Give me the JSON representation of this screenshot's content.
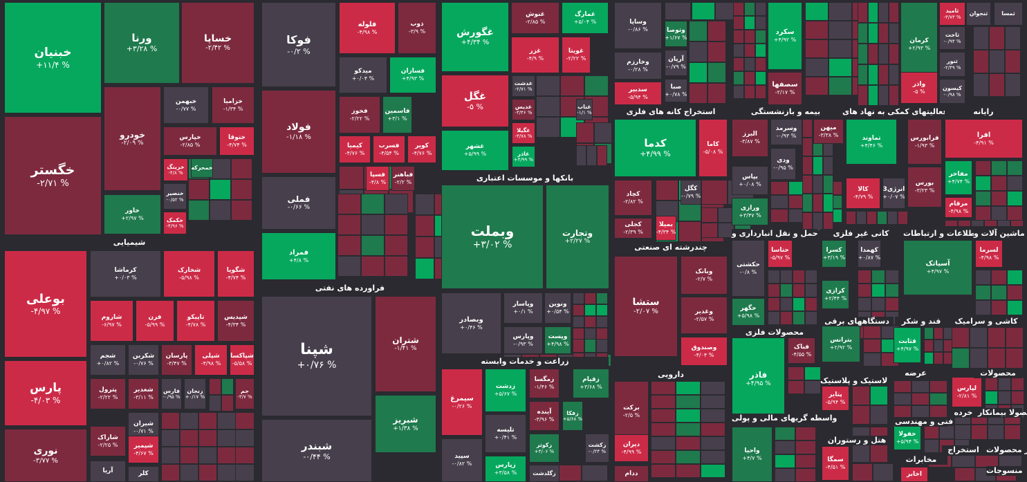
{
  "chart_data": {
    "type": "treemap",
    "colors": {
      "strong_up": "#06a85e",
      "up": "#1f7a4d",
      "flat": "#47404c",
      "down": "#7d2a3f",
      "strong_down": "#cc2b47",
      "background": "#2a2a30"
    },
    "sectors": [
      "شیمیایی",
      "فراورده های نفتی",
      "بانکها و موسسات اعتباری",
      "زراعت و خدمات وابسته",
      "استخراج کانه های فلزی",
      "بیمه و بازنشستگی",
      "فعالیتهای کمکی به نهاد های",
      "رایانه",
      "چندرشته ای صنعتی",
      "حمل و نقل انبارداری و",
      "کانی غیر فلزی",
      "اطلاعات و ارتباطات",
      "ماشین آلات و",
      "محصولات فلزی",
      "دستگاههای برقی",
      "قند و شکر",
      "کاشی و سرامیک",
      "دارویی",
      "لاستیک و پلاستیک",
      "واسطه گریهای مالی و پولی",
      "هتل و رستوران",
      "مخابرات",
      "عرضه",
      "محصولات",
      "فنی و مهندسی",
      "خرده",
      "محصولا بیمانکار",
      "سایر محصولات",
      "استخراج",
      "منسوجات"
    ],
    "stocks": [
      {
        "name": "خبنیان",
        "change": "+۱۱/۴ %",
        "c": "strong_up"
      },
      {
        "name": "ورنا",
        "change": "+۳/۲۸ %",
        "c": "up"
      },
      {
        "name": "خساپا",
        "change": "-۲/۴۲ %",
        "c": "down"
      },
      {
        "name": "خگستر",
        "change": "-۲/۷۱ %",
        "c": "down"
      },
      {
        "name": "خبهمن",
        "change": "-۰/۷۷ %",
        "c": "flat"
      },
      {
        "name": "خزامیا",
        "change": "-۱/۳۴ %",
        "c": "down"
      },
      {
        "name": "خودرو",
        "change": "-۲/۰۹ %",
        "c": "down"
      },
      {
        "name": "خپارس",
        "change": "-۲/۸۵ %",
        "c": "down"
      },
      {
        "name": "ختوقا",
        "change": "-۴/۷۴ %",
        "c": "strong_down"
      },
      {
        "name": "خرینگ",
        "change": "-۴/۸ %",
        "c": "strong_down"
      },
      {
        "name": "خمحرکه",
        "change": "",
        "c": "up"
      },
      {
        "name": "خاور",
        "change": "+۲/۹۷ %",
        "c": "up"
      },
      {
        "name": "خکمک",
        "change": "-۴/۹۶ %",
        "c": "strong_down"
      },
      {
        "name": "خنصیر",
        "change": "-۰/۵۲ %",
        "c": "flat"
      },
      {
        "name": "فوکا",
        "change": "-۰/۲ %",
        "c": "flat"
      },
      {
        "name": "فولاد",
        "change": "-۱/۱۸ %",
        "c": "down"
      },
      {
        "name": "فملی",
        "change": "-۰/۶۶ %",
        "c": "flat"
      },
      {
        "name": "فمراد",
        "change": "+۴/۸ %",
        "c": "strong_up"
      },
      {
        "name": "فلوله",
        "change": "-۴/۹۸ %",
        "c": "strong_down"
      },
      {
        "name": "ذوب",
        "change": "-۳/۹ %",
        "c": "down"
      },
      {
        "name": "میدکو",
        "change": "+۰/۰۴ %",
        "c": "flat"
      },
      {
        "name": "فسازان",
        "change": "+۴/۹۳ %",
        "c": "strong_up"
      },
      {
        "name": "فخوز",
        "change": "-۲/۲۲ %",
        "c": "down"
      },
      {
        "name": "فاسمین",
        "change": "+۳/۱ %",
        "c": "up"
      },
      {
        "name": "کیمیا",
        "change": "-۴/۷۶ %",
        "c": "strong_down"
      },
      {
        "name": "فسرب",
        "change": "-۴/۵۴ %",
        "c": "strong_down"
      },
      {
        "name": "کویر",
        "change": "-۴/۷۶ %",
        "c": "strong_down"
      },
      {
        "name": "فسپا",
        "change": "-۴/۸ %",
        "c": "strong_down"
      },
      {
        "name": "فباهنر",
        "change": "-۲/۲ %",
        "c": "down"
      },
      {
        "name": "غگورش",
        "change": "+۴/۳۴ %",
        "c": "strong_up"
      },
      {
        "name": "غنوش",
        "change": "-۲/۸۵ %",
        "c": "down"
      },
      {
        "name": "غمارگ",
        "change": "+۵/۰۴ %",
        "c": "strong_up"
      },
      {
        "name": "غزر",
        "change": "-۴/۹ %",
        "c": "strong_down"
      },
      {
        "name": "غویتا",
        "change": "-۲/۲۲ %",
        "c": "strong_down"
      },
      {
        "name": "غگل",
        "change": "-۵ %",
        "c": "strong_down"
      },
      {
        "name": "غدشت",
        "change": "-۲/۷۱ %",
        "c": "flat"
      },
      {
        "name": "غدیس",
        "change": "-۳/۴۶ %",
        "c": "down"
      },
      {
        "name": "غشهر",
        "change": "+۵/۹۹ %",
        "c": "strong_up"
      },
      {
        "name": "غگیلا",
        "change": "-۳/۷۸ %",
        "c": "strong_down"
      },
      {
        "name": "غناب",
        "change": "-۱/۱ %",
        "c": "flat"
      },
      {
        "name": "غاذر",
        "change": "+۴/۹۹ %",
        "c": "strong_up"
      },
      {
        "name": "وبملت",
        "change": "+۳/۰۲ %",
        "c": "up"
      },
      {
        "name": "وتجارت",
        "change": "+۲/۲۷ %",
        "c": "up"
      },
      {
        "name": "شپنا",
        "change": "+۰/۷۶ %",
        "c": "flat"
      },
      {
        "name": "شتران",
        "change": "-۱/۴۱ %",
        "c": "down"
      },
      {
        "name": "شبریز",
        "change": "+۱/۳۸ %",
        "c": "up"
      },
      {
        "name": "شبندر",
        "change": "-۰/۴۴ %",
        "c": "flat"
      },
      {
        "name": "وبصادر",
        "change": "+۰/۴۶ %",
        "c": "flat"
      },
      {
        "name": "وپاسار",
        "change": "+۰/۱ %",
        "c": "flat"
      },
      {
        "name": "ونوین",
        "change": "+۰/۵۴ %",
        "c": "flat"
      },
      {
        "name": "وپارس",
        "change": "-۰/۹۳ %",
        "c": "flat"
      },
      {
        "name": "وپست",
        "change": "+۴/۹۸ %",
        "c": "up"
      },
      {
        "name": "بوعلی",
        "change": "-۴/۹۷ %",
        "c": "strong_down"
      },
      {
        "name": "کرماشا",
        "change": "+۰/۰۳ %",
        "c": "flat"
      },
      {
        "name": "شخارک",
        "change": "-۵/۹۸ %",
        "c": "strong_down"
      },
      {
        "name": "شگویا",
        "change": "-۴/۷۴ %",
        "c": "strong_down"
      },
      {
        "name": "پارس",
        "change": "-۴/۰۳ %",
        "c": "strong_down"
      },
      {
        "name": "شاروم",
        "change": "-۶/۹۷ %",
        "c": "strong_down"
      },
      {
        "name": "فرن",
        "change": "-۵/۹۹ %",
        "c": "strong_down"
      },
      {
        "name": "تاپیکو",
        "change": "-۴/۷۸ %",
        "c": "strong_down"
      },
      {
        "name": "شپدیس",
        "change": "-۴/۳۴ %",
        "c": "down"
      },
      {
        "name": "شجم",
        "change": "+۰/۸۲ %",
        "c": "flat"
      },
      {
        "name": "شکربن",
        "change": "-۰/۷۶ %",
        "c": "flat"
      },
      {
        "name": "پارسان",
        "change": "-۳/۴۷ %",
        "c": "down"
      },
      {
        "name": "شپلی",
        "change": "-۴/۹۸ %",
        "c": "strong_down"
      },
      {
        "name": "شپاکسا",
        "change": "-۵/۵۸ %",
        "c": "strong_down"
      },
      {
        "name": "پترول",
        "change": "-۲/۲۲ %",
        "c": "down"
      },
      {
        "name": "شغدیر",
        "change": "-۳/۱۱ %",
        "c": "down"
      },
      {
        "name": "فارس",
        "change": "-۰/۹۵ %",
        "c": "flat"
      },
      {
        "name": "زنجان",
        "change": "+۰/۱۷ %",
        "c": "flat"
      },
      {
        "name": "جم",
        "change": "-۳/۷ %",
        "c": "down"
      },
      {
        "name": "نوری",
        "change": "-۳/۷۷ %",
        "c": "down"
      },
      {
        "name": "شیران",
        "change": "-۰/۷۱ %",
        "c": "flat"
      },
      {
        "name": "شاراک",
        "change": "-۲/۲۵ %",
        "c": "down"
      },
      {
        "name": "شپمیر",
        "change": "-۴/۶۷ %",
        "c": "strong_down"
      },
      {
        "name": "آریا",
        "change": "",
        "c": "flat"
      },
      {
        "name": "کلر",
        "change": "",
        "c": "flat"
      },
      {
        "name": "سیمرغ",
        "change": "-۰/۲۶ %",
        "c": "strong_down"
      },
      {
        "name": "زدشت",
        "change": "+۵/۶۷ %",
        "c": "strong_up"
      },
      {
        "name": "زمگسا",
        "change": "-۱/۴۶ %",
        "c": "down"
      },
      {
        "name": "زقیام",
        "change": "+۳/۶۸ %",
        "c": "up"
      },
      {
        "name": "تلیسه",
        "change": "+۰/۴۱ %",
        "c": "flat"
      },
      {
        "name": "آینده",
        "change": "-۳/۹۶ %",
        "c": "down"
      },
      {
        "name": "زفکا",
        "change": "+۵/۶۸ %",
        "c": "up"
      },
      {
        "name": "زکوثر",
        "change": "+۳/۰۶ %",
        "c": "up"
      },
      {
        "name": "زکشت",
        "change": "-۰/۲۴ %",
        "c": "flat"
      },
      {
        "name": "سپید",
        "change": "-۰/۸۲ %",
        "c": "flat"
      },
      {
        "name": "زپارس",
        "change": "+۳/۵۸ %",
        "c": "strong_up"
      },
      {
        "name": "زگلدشت",
        "change": "",
        "c": "flat"
      },
      {
        "name": "وساپا",
        "change": "-۰/۸۶ %",
        "c": "flat"
      },
      {
        "name": "وتوصا",
        "change": "+۱/۶۷ %",
        "c": "up"
      },
      {
        "name": "وخارزم",
        "change": "-۰/۲۸ %",
        "c": "flat"
      },
      {
        "name": "آریان",
        "change": "-۰/۷۹ %",
        "c": "flat"
      },
      {
        "name": "صبا",
        "change": "+۰/۷۸ %",
        "c": "flat"
      },
      {
        "name": "سدبیر",
        "change": "-۵/۹۴ %",
        "c": "strong_down"
      },
      {
        "name": "کدما",
        "change": "+۴/۹۹ %",
        "c": "strong_up"
      },
      {
        "name": "کاما",
        "change": "-۵/۰۸ %",
        "c": "strong_down"
      },
      {
        "name": "کچاد",
        "change": "-۲/۸۲ %",
        "c": "down"
      },
      {
        "name": "کگل",
        "change": "-۰/۷۹ %",
        "c": "flat"
      },
      {
        "name": "کجلی",
        "change": "-۲/۳۹ %",
        "c": "down"
      },
      {
        "name": "بمیلا",
        "change": "-۴/۳۴ %",
        "c": "strong_down"
      },
      {
        "name": "ستشا",
        "change": "-۲/۰۷ %",
        "c": "down"
      },
      {
        "name": "وبانک",
        "change": "-۲/۷ %",
        "c": "down"
      },
      {
        "name": "وغدیر",
        "change": "-۲/۵۷ %",
        "c": "down"
      },
      {
        "name": "وصندوق",
        "change": "-۴/۰۴ %",
        "c": "strong_down"
      },
      {
        "name": "برکت",
        "change": "-۲/۵ %",
        "c": "down"
      },
      {
        "name": "دیران",
        "change": "-۴/۹۹ %",
        "c": "strong_down"
      },
      {
        "name": "ددام",
        "change": "",
        "c": "down"
      },
      {
        "name": "سکرد",
        "change": "+۴/۹۲ %",
        "c": "strong_up"
      },
      {
        "name": "سصفها",
        "change": "-۲/۱۷ %",
        "c": "down"
      },
      {
        "name": "کرمان",
        "change": "+۲/۹۳ %",
        "c": "up"
      },
      {
        "name": "واذر",
        "change": "-۵ %",
        "c": "strong_down"
      },
      {
        "name": "البرز",
        "change": "-۳/۸۷ %",
        "c": "down"
      },
      {
        "name": "وسرمد",
        "change": "-۰/۹۳ %",
        "c": "flat"
      },
      {
        "name": "میهن",
        "change": "-۳/۳۸ %",
        "c": "down"
      },
      {
        "name": "ودی",
        "change": "-۰/۹۵ %",
        "c": "flat"
      },
      {
        "name": "بپاس",
        "change": "+۰/۰۸ %",
        "c": "flat"
      },
      {
        "name": "ورازی",
        "change": "+۳/۴۷ %",
        "c": "up"
      },
      {
        "name": "تماوند",
        "change": "+۴/۴۶ %",
        "c": "strong_up"
      },
      {
        "name": "فرابورس",
        "change": "-۱/۹۳ %",
        "c": "down"
      },
      {
        "name": "بورس",
        "change": "-۳/۲۳ %",
        "c": "down"
      },
      {
        "name": "کالا",
        "change": "-۴/۷۹ %",
        "c": "strong_down"
      },
      {
        "name": "انرژی3",
        "change": "+۰/۰۷ %",
        "c": "flat"
      },
      {
        "name": "افرا",
        "change": "-۴/۹۱ %",
        "c": "strong_down"
      },
      {
        "name": "مفاخر",
        "change": "+۴/۷۴ %",
        "c": "strong_up"
      },
      {
        "name": "مرقام",
        "change": "-۴/۹۸ %",
        "c": "strong_down"
      },
      {
        "name": "ثامید",
        "change": "-۳/۷۳ %",
        "c": "strong_down"
      },
      {
        "name": "ثنجوان",
        "change": "",
        "c": "flat"
      },
      {
        "name": "ثاخت",
        "change": "-۰/۹۴ %",
        "c": "flat"
      },
      {
        "name": "ثنور",
        "change": "-۲/۴۹ %",
        "c": "flat"
      },
      {
        "name": "کیسون",
        "change": "-۰/۹۸ %",
        "c": "flat"
      },
      {
        "name": "ثمسا",
        "change": "",
        "c": "flat"
      },
      {
        "name": "حکشتی",
        "change": "-۰/۸ %",
        "c": "flat"
      },
      {
        "name": "حتاسا",
        "change": "-۵/۹۷ %",
        "c": "strong_down"
      },
      {
        "name": "حگهر",
        "change": "+۵/۹۸ %",
        "c": "up"
      },
      {
        "name": "کسرا",
        "change": "+۳/۱۹ %",
        "c": "up"
      },
      {
        "name": "کهمدا",
        "change": "+۰/۸۷ %",
        "c": "flat"
      },
      {
        "name": "کرازی",
        "change": "+۲/۴۴ %",
        "c": "up"
      },
      {
        "name": "آسیاتک",
        "change": "+۴/۹۷ %",
        "c": "up"
      },
      {
        "name": "لسرما",
        "change": "-۴/۹۸ %",
        "c": "strong_down"
      },
      {
        "name": "فاذر",
        "change": "+۴/۹۵ %",
        "c": "strong_up"
      },
      {
        "name": "فباک",
        "change": "-۴/۵۵ %",
        "c": "down"
      },
      {
        "name": "بترانس",
        "change": "+۲/۹۲ %",
        "c": "up"
      },
      {
        "name": "قثابت",
        "change": "+۴/۹۷ %",
        "c": "strong_up"
      },
      {
        "name": "پتایر",
        "change": "-۵/۹۴ %",
        "c": "strong_down"
      },
      {
        "name": "لپارس",
        "change": "-۲/۸۱ %",
        "c": "strong_down"
      },
      {
        "name": "خفولا",
        "change": "+۵/۹۴ %",
        "c": "strong_up"
      },
      {
        "name": "سمگا",
        "change": "-۴/۵۱ %",
        "c": "strong_down"
      },
      {
        "name": "واحیا",
        "change": "+۴/۷ %",
        "c": "up"
      },
      {
        "name": "اخابر",
        "change": "",
        "c": "strong_down"
      }
    ]
  }
}
